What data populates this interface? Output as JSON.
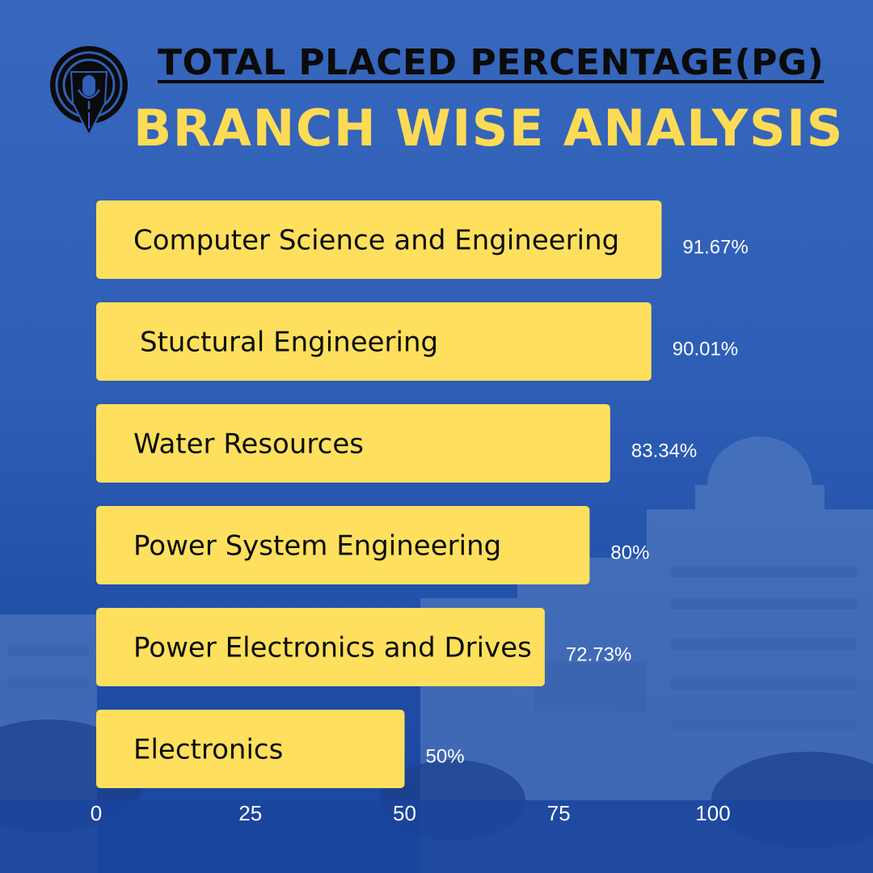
{
  "header": {
    "title": "TOTAL PLACED PERCENTAGE(PG)",
    "subtitle": "BRANCH WISE ANALYSIS"
  },
  "colors": {
    "bar": "#fee05e",
    "title_accent": "#fddb55",
    "background": "#2d5db5"
  },
  "icons": {
    "logo": "pen-nib-microphone-logo"
  },
  "chart_data": {
    "type": "bar",
    "orientation": "horizontal",
    "title": "TOTAL PLACED PERCENTAGE(PG) BRANCH WISE ANALYSIS",
    "xlabel": "",
    "ylabel": "",
    "xlim": [
      0,
      100
    ],
    "ticks": [
      0,
      25,
      50,
      75,
      100
    ],
    "categories": [
      "Computer Science and Engineering",
      "Stuctural Engineering",
      "Water Resources",
      "Power System Engineering",
      "Power Electronics and Drives",
      "Electronics"
    ],
    "values": [
      91.67,
      90.01,
      83.34,
      80,
      72.73,
      50
    ],
    "value_labels": [
      "91.67%",
      "90.01%",
      "83.34%",
      "80%",
      "72.73%",
      "50%"
    ]
  }
}
